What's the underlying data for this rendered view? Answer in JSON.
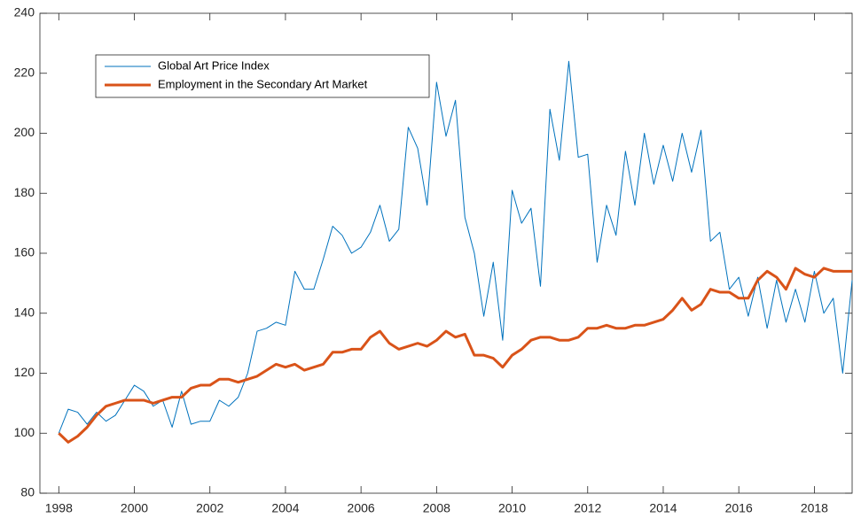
{
  "chart_data": {
    "type": "line",
    "x": [
      1998,
      1998.25,
      1998.5,
      1998.75,
      1999,
      1999.25,
      1999.5,
      1999.75,
      2000,
      2000.25,
      2000.5,
      2000.75,
      2001,
      2001.25,
      2001.5,
      2001.75,
      2002,
      2002.25,
      2002.5,
      2002.75,
      2003,
      2003.25,
      2003.5,
      2003.75,
      2004,
      2004.25,
      2004.5,
      2004.75,
      2005,
      2005.25,
      2005.5,
      2005.75,
      2006,
      2006.25,
      2006.5,
      2006.75,
      2007,
      2007.25,
      2007.5,
      2007.75,
      2008,
      2008.25,
      2008.5,
      2008.75,
      2009,
      2009.25,
      2009.5,
      2009.75,
      2010,
      2010.25,
      2010.5,
      2010.75,
      2011,
      2011.25,
      2011.5,
      2011.75,
      2012,
      2012.25,
      2012.5,
      2012.75,
      2013,
      2013.25,
      2013.5,
      2013.75,
      2014,
      2014.25,
      2014.5,
      2014.75,
      2015,
      2015.25,
      2015.5,
      2015.75,
      2016,
      2016.25,
      2016.5,
      2016.75,
      2017,
      2017.25,
      2017.5,
      2017.75,
      2018,
      2018.25,
      2018.5,
      2018.75,
      2019
    ],
    "series": [
      {
        "name": "Global Art Price Index",
        "color": "#0072bd",
        "line_width": 1,
        "values": [
          100,
          108,
          107,
          103,
          107,
          104,
          106,
          111,
          116,
          114,
          109,
          111,
          102,
          114,
          103,
          104,
          104,
          111,
          109,
          112,
          120,
          134,
          135,
          137,
          136,
          154,
          148,
          148,
          158,
          169,
          166,
          160,
          162,
          167,
          176,
          164,
          168,
          202,
          195,
          176,
          217,
          199,
          211,
          172,
          160,
          139,
          157,
          131,
          181,
          170,
          175,
          149,
          208,
          191,
          224,
          192,
          193,
          157,
          176,
          166,
          194,
          176,
          200,
          183,
          196,
          184,
          200,
          187,
          201,
          164,
          167,
          148,
          152,
          139,
          152,
          135,
          151,
          137,
          148,
          137,
          154,
          140,
          145,
          120,
          151
        ]
      },
      {
        "name": "Employment in the Secondary Art Market",
        "color": "#d95319",
        "line_width": 3,
        "values": [
          100,
          97,
          99,
          102,
          106,
          109,
          110,
          111,
          111,
          111,
          110,
          111,
          112,
          112,
          115,
          116,
          116,
          118,
          118,
          117,
          118,
          119,
          121,
          123,
          122,
          123,
          121,
          122,
          123,
          127,
          127,
          128,
          128,
          132,
          134,
          130,
          128,
          129,
          130,
          129,
          131,
          134,
          132,
          133,
          126,
          126,
          125,
          122,
          126,
          128,
          131,
          132,
          132,
          131,
          131,
          132,
          135,
          135,
          136,
          135,
          135,
          136,
          136,
          137,
          138,
          141,
          145,
          141,
          143,
          148,
          147,
          147,
          145,
          145,
          151,
          154,
          152,
          148,
          155,
          153,
          152,
          155,
          154,
          154,
          154
        ]
      }
    ],
    "xlim": [
      1997.5,
      2019
    ],
    "ylim": [
      80,
      240
    ],
    "xticks": [
      1998,
      2000,
      2002,
      2004,
      2006,
      2008,
      2010,
      2012,
      2014,
      2016,
      2018
    ],
    "yticks": [
      80,
      100,
      120,
      140,
      160,
      180,
      200,
      220,
      240
    ],
    "legend": "upper left",
    "grid": false
  }
}
